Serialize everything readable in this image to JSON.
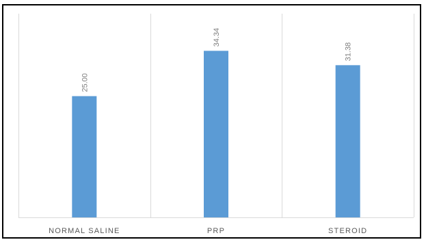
{
  "chart_data": {
    "type": "bar",
    "categories": [
      "NORMAL SALINE",
      "PRP",
      "STEROID"
    ],
    "values": [
      25.0,
      34.34,
      31.38
    ],
    "value_labels": [
      "25.00",
      "34.34",
      "31.38"
    ],
    "title": "",
    "xlabel": "",
    "ylabel": "",
    "ylim": [
      0,
      42
    ],
    "grid": "vertical category separators",
    "legend": "none",
    "colors": {
      "bar": "#5b9bd5",
      "grid": "#d9d9d9",
      "text": "#595959",
      "border": "#000000"
    }
  }
}
